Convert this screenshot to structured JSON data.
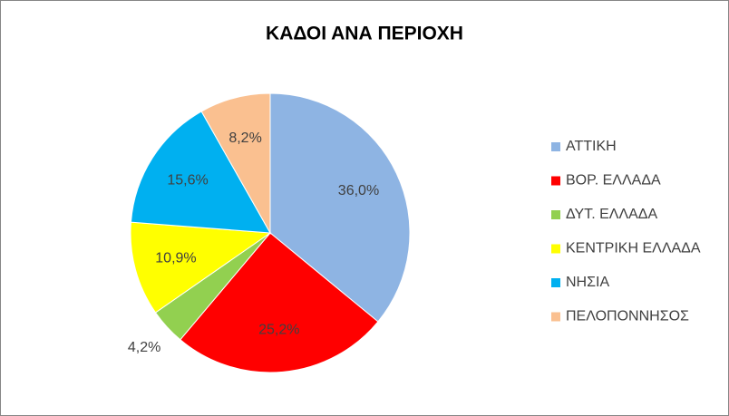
{
  "chart_data": {
    "type": "pie",
    "title": "ΚΑΔΟΙ ΑΝΑ ΠΕΡΙΟΧΗ",
    "categories": [
      "ΑΤΤΙΚΗ",
      "ΒΟΡ. ΕΛΛΑΔΑ",
      "ΔΥΤ. ΕΛΛΑΔΑ",
      "ΚΕΝΤΡΙΚΗ ΕΛΛΑΔΑ",
      "ΝΗΣΙΑ",
      "ΠΕΛΟΠΟΝΝΗΣΟΣ"
    ],
    "values": [
      36.0,
      25.2,
      4.2,
      10.9,
      15.6,
      8.2
    ],
    "value_labels": [
      "36,0%",
      "25,2%",
      "4,2%",
      "10,9%",
      "15,6%",
      "8,2%"
    ],
    "colors": [
      "#8eb4e3",
      "#ff0000",
      "#92d050",
      "#ffff00",
      "#00b0f0",
      "#fac090"
    ],
    "legend": "right"
  }
}
